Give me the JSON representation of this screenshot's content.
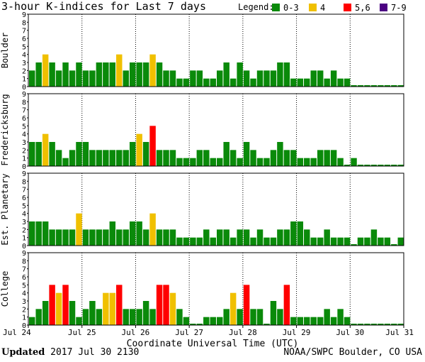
{
  "title": "3-hour K-indices for Last 7 days",
  "legend": {
    "label": "Legend:",
    "entries": [
      {
        "label": "0-3",
        "color": "#0a8a0a"
      },
      {
        "label": "4",
        "color": "#f0c000"
      },
      {
        "label": "5,6",
        "color": "#ff0000"
      },
      {
        "label": "7-9",
        "color": "#4b0082"
      }
    ]
  },
  "footer": {
    "updated_label": "Updated",
    "updated_value": "2017 Jul 30 2130",
    "credit": "NOAA/SWPC Boulder, CO USA"
  },
  "chart_data": {
    "type": "bar",
    "title": "3-hour K-indices for Last 7 days",
    "xlabel": "Coordinate Universal Time (UTC)",
    "x_ticks": [
      "Jul 24",
      "Jul 25",
      "Jul 26",
      "Jul 27",
      "Jul 28",
      "Jul 29",
      "Jul 30",
      "Jul 31"
    ],
    "y_ticks": [
      "0",
      "1",
      "2",
      "3",
      "4",
      "5",
      "6",
      "7",
      "8",
      "9"
    ],
    "ylim": [
      0,
      9
    ],
    "bins_per_day": 8,
    "days": 7,
    "color_scale": [
      {
        "range": "0-3",
        "color": "#0a8a0a"
      },
      {
        "range": "4",
        "color": "#f0c000"
      },
      {
        "range": "5,6",
        "color": "#ff0000"
      },
      {
        "range": "7-9",
        "color": "#4b0082"
      }
    ],
    "series": [
      {
        "name": "Boulder",
        "values": [
          2,
          3,
          4,
          3,
          2,
          3,
          2,
          3,
          2,
          2,
          3,
          3,
          3,
          4,
          2,
          3,
          3,
          3,
          4,
          3,
          2,
          2,
          1,
          1,
          2,
          2,
          1,
          1,
          2,
          3,
          1,
          3,
          2,
          1,
          2,
          2,
          2,
          3,
          3,
          1,
          1,
          1,
          2,
          2,
          1,
          2,
          1,
          1,
          0,
          0,
          0,
          0,
          0,
          0,
          0,
          0
        ]
      },
      {
        "name": "Fredericksburg",
        "values": [
          3,
          3,
          4,
          3,
          2,
          1,
          2,
          3,
          3,
          2,
          2,
          2,
          2,
          2,
          2,
          3,
          4,
          3,
          5,
          2,
          2,
          2,
          1,
          1,
          1,
          2,
          2,
          1,
          1,
          3,
          2,
          1,
          3,
          2,
          1,
          1,
          2,
          3,
          2,
          2,
          1,
          1,
          1,
          2,
          2,
          2,
          1,
          0,
          1,
          0,
          0,
          0,
          0,
          0,
          0,
          0
        ]
      },
      {
        "name": "Est. Planetary",
        "values": [
          3,
          3,
          3,
          2,
          2,
          2,
          2,
          4,
          2,
          2,
          2,
          2,
          3,
          2,
          2,
          3,
          3,
          2,
          4,
          2,
          2,
          2,
          1,
          1,
          1,
          1,
          2,
          1,
          2,
          2,
          1,
          2,
          2,
          1,
          2,
          1,
          1,
          2,
          2,
          3,
          3,
          2,
          1,
          1,
          2,
          1,
          1,
          1,
          0,
          1,
          1,
          2,
          1,
          1,
          0,
          1
        ]
      },
      {
        "name": "College",
        "values": [
          1,
          2,
          3,
          5,
          4,
          5,
          3,
          1,
          2,
          3,
          2,
          4,
          4,
          5,
          2,
          2,
          2,
          3,
          2,
          5,
          5,
          4,
          2,
          1,
          0,
          0,
          1,
          1,
          1,
          2,
          4,
          2,
          5,
          2,
          2,
          0,
          3,
          2,
          5,
          1,
          1,
          1,
          1,
          1,
          2,
          1,
          2,
          1,
          0,
          0,
          0,
          0,
          0,
          0,
          0,
          0
        ]
      }
    ]
  }
}
